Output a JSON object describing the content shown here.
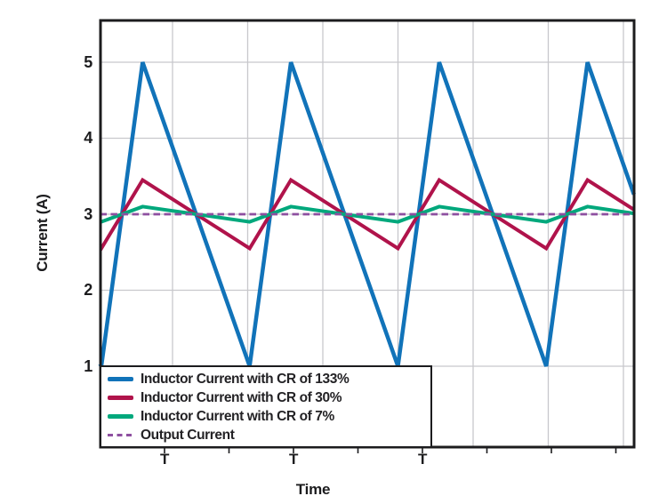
{
  "figure": {
    "ylabel": "Current (A)",
    "xlabel": "Time",
    "y_tick_labels": [
      "5",
      "4",
      "3",
      "2",
      "1"
    ],
    "x_tick_labels": [
      "T",
      "T",
      "T"
    ]
  },
  "legend": {
    "items": [
      {
        "label": "Inductor Current with CR of 133%",
        "color": "#1173B9",
        "style": "solid"
      },
      {
        "label": "Inductor Current with CR of 30%",
        "color": "#B0134B",
        "style": "solid"
      },
      {
        "label": "Inductor Current with CR of 7%",
        "color": "#00A87C",
        "style": "solid"
      },
      {
        "label": "Output Current",
        "color": "#8E4FA0",
        "style": "dashed"
      }
    ]
  },
  "colors": {
    "cr133_blue": "#1173B9",
    "cr30_crimson": "#B0134B",
    "cr7_green": "#00A87C",
    "output_purple": "#8E4FA0",
    "gridline_gray": "#C8C8CC",
    "frame_ink": "#1c1c1e"
  },
  "chart_data": {
    "type": "line",
    "title": "",
    "xlabel": "Time",
    "ylabel": "Current (A)",
    "x_unit": "multiples of switching period T",
    "x_tick_positions_T": [
      1,
      2,
      3
    ],
    "x_tick_labels": [
      "T",
      "T",
      "T"
    ],
    "y_ticks": [
      1,
      2,
      3,
      4,
      5
    ],
    "xlim_T": [
      0.5,
      4.64
    ],
    "ylim": [
      -0.07,
      5.55
    ],
    "grid": true,
    "legend_position": "lower left, boxed, inside plot",
    "average_output_current_A": 3,
    "series": [
      {
        "name": "Inductor Current with CR of 133%",
        "color": "#1173B9",
        "style": "solid",
        "width": 4.5,
        "ripple_pp_A": 4,
        "min_A": 1,
        "max_A": 5,
        "points": [
          [
            0.5,
            1.03
          ],
          [
            0.51,
            1.0
          ],
          [
            0.83,
            5.0
          ],
          [
            1.66,
            1.0
          ],
          [
            1.98,
            5.0
          ],
          [
            2.81,
            1.0
          ],
          [
            3.13,
            5.0
          ],
          [
            3.96,
            1.0
          ],
          [
            4.28,
            5.0
          ],
          [
            4.64,
            3.26
          ]
        ]
      },
      {
        "name": "Inductor Current with CR of 30%",
        "color": "#B0134B",
        "style": "solid",
        "width": 4,
        "ripple_pp_A": 0.9,
        "min_A": 2.55,
        "max_A": 3.45,
        "points": [
          [
            0.5,
            2.56
          ],
          [
            0.51,
            2.55
          ],
          [
            0.83,
            3.45
          ],
          [
            1.66,
            2.55
          ],
          [
            1.98,
            3.45
          ],
          [
            2.81,
            2.55
          ],
          [
            3.13,
            3.45
          ],
          [
            3.96,
            2.55
          ],
          [
            4.28,
            3.45
          ],
          [
            4.64,
            3.06
          ]
        ]
      },
      {
        "name": "Inductor Current with CR of 7%",
        "color": "#00A87C",
        "style": "solid",
        "width": 4,
        "ripple_pp_A": 0.21,
        "min_A": 2.9,
        "max_A": 3.1,
        "points": [
          [
            0.5,
            2.9
          ],
          [
            0.51,
            2.9
          ],
          [
            0.83,
            3.1
          ],
          [
            1.66,
            2.9
          ],
          [
            1.98,
            3.1
          ],
          [
            2.81,
            2.9
          ],
          [
            3.13,
            3.1
          ],
          [
            3.96,
            2.9
          ],
          [
            4.28,
            3.1
          ],
          [
            4.64,
            3.01
          ]
        ]
      },
      {
        "name": "Output Current",
        "color": "#8E4FA0",
        "style": "dashed",
        "width": 2.7,
        "points": [
          [
            0.5,
            3.0
          ],
          [
            4.64,
            3.0
          ]
        ]
      }
    ]
  }
}
